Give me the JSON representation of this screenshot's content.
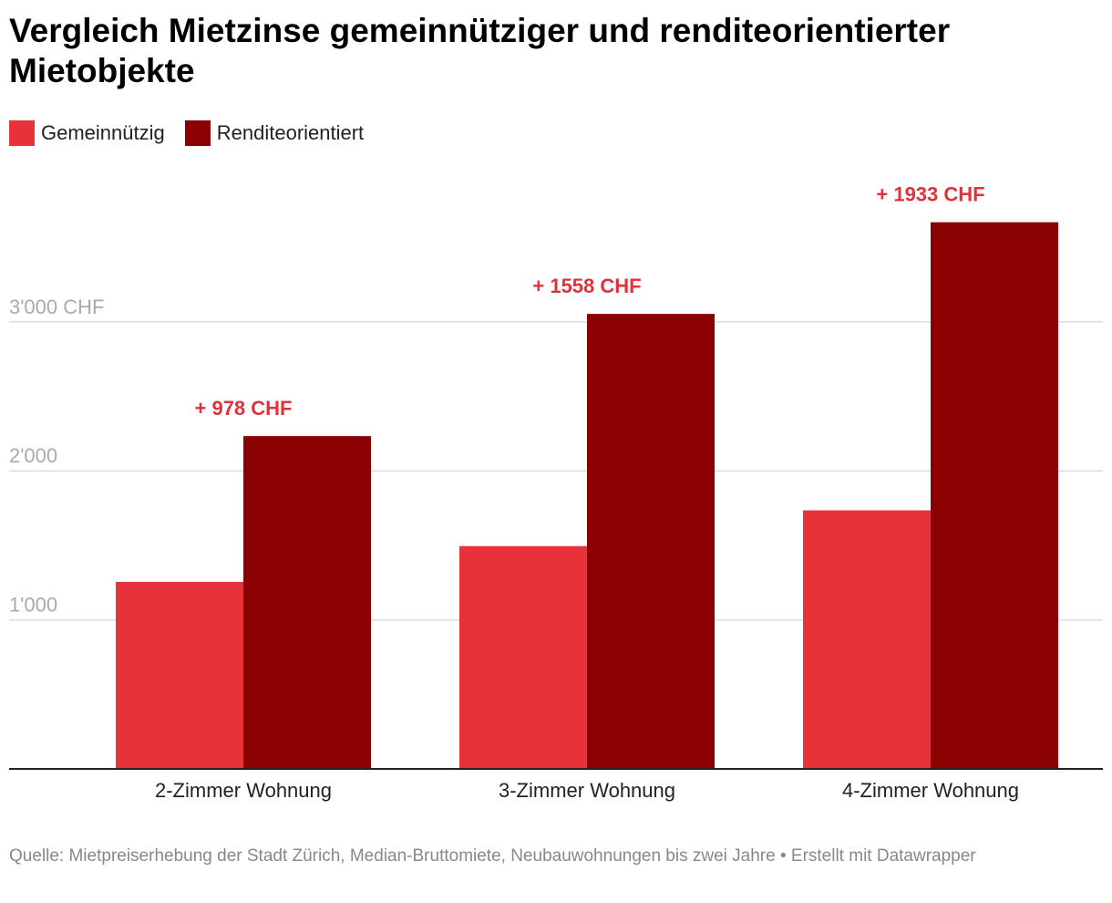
{
  "title": "Vergleich Mietzinse gemeinnütziger und renditeorientierter Mietobjekte",
  "legend": [
    {
      "label": "Gemeinnützig",
      "color": "#e8323a"
    },
    {
      "label": "Renditeorientiert",
      "color": "#8b0000"
    }
  ],
  "chart_data": {
    "type": "bar",
    "categories": [
      "2-Zimmer Wohnung",
      "3-Zimmer Wohnung",
      "4-Zimmer Wohnung"
    ],
    "series": [
      {
        "name": "Gemeinnützig",
        "values": [
          1255,
          1495,
          1735
        ],
        "color": "#e8323a"
      },
      {
        "name": "Renditeorientiert",
        "values": [
          2233,
          3053,
          3668
        ],
        "color": "#8b0000"
      }
    ],
    "annotations": [
      "+ 978 CHF",
      "+ 1558 CHF",
      "+ 1933 CHF"
    ],
    "annotation_color": "#e0323a",
    "yticks": [
      {
        "value": 1000,
        "label": "1'000"
      },
      {
        "value": 2000,
        "label": "2'000"
      },
      {
        "value": 3000,
        "label": "3'000 CHF"
      }
    ],
    "ylim": [
      0,
      4200
    ],
    "xlabel": "",
    "ylabel": ""
  },
  "footer": "Quelle: Mietpreiserhebung der Stadt Zürich, Median-Bruttomiete, Neubauwohnungen bis zwei Jahre • Erstellt mit Datawrapper"
}
